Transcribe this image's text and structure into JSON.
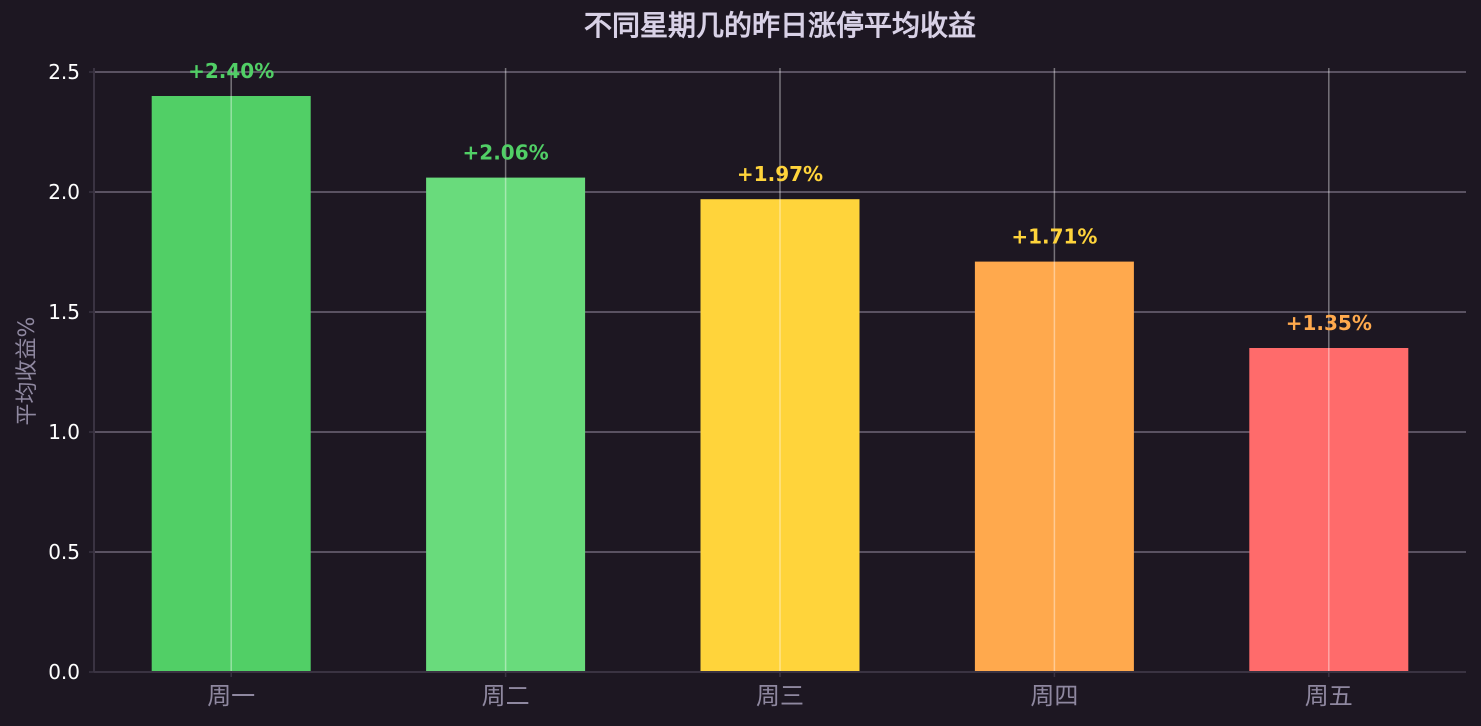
{
  "chart_data": {
    "type": "bar",
    "title": "不同星期几的昨日涨停平均收益",
    "xlabel": "",
    "ylabel": "平均收益%",
    "categories": [
      "周一",
      "周二",
      "周三",
      "周四",
      "周五"
    ],
    "values": [
      2.4,
      2.06,
      1.97,
      1.71,
      1.35
    ],
    "value_labels": [
      "+2.40%",
      "+2.06%",
      "+1.97%",
      "+1.71%",
      "+1.35%"
    ],
    "bar_colors": [
      "#51cf66",
      "#69db7c",
      "#ffd43b",
      "#ffa94d",
      "#ff6b6b"
    ],
    "value_label_colors": [
      "#51cf66",
      "#51cf66",
      "#ffd43b",
      "#ffd43b",
      "#ffa94d"
    ],
    "ylim": [
      0,
      2.5
    ],
    "yticks": [
      "0.0",
      "0.5",
      "1.0",
      "1.5",
      "2.0",
      "2.5"
    ],
    "grid": true,
    "legend": "none"
  },
  "theme": {
    "background": "#1d1722",
    "grid_color": "#6e6678",
    "axis_color": "#3a3342",
    "title_color": "#d8d1e6",
    "muted_text_color": "#8f88a0",
    "tick_text_color": "#ffffff"
  }
}
